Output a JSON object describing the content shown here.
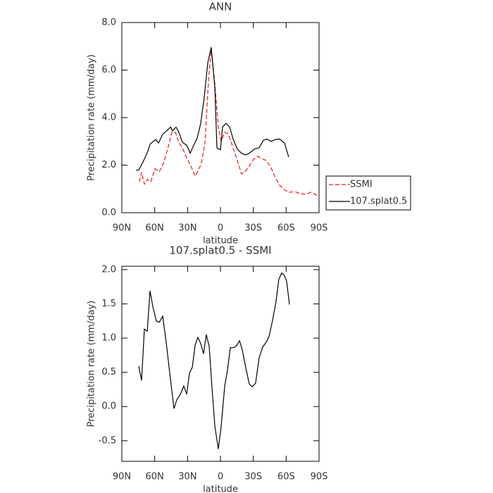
{
  "chart_data": [
    {
      "type": "line",
      "title": "ANN",
      "xlabel": "latitude",
      "ylabel": "Precipitation rate (mm/day)",
      "xlim": [
        90,
        -90
      ],
      "xticks": [
        {
          "value": 90,
          "label": "90N"
        },
        {
          "value": 60,
          "label": "60N"
        },
        {
          "value": 30,
          "label": "30N"
        },
        0,
        {
          "value": -30,
          "label": "30S"
        },
        {
          "value": -60,
          "label": "60S"
        },
        {
          "value": -90,
          "label": "90S"
        }
      ],
      "ylim": [
        0,
        8
      ],
      "yticks": [
        {
          "value": 0,
          "label": "0.0"
        },
        {
          "value": 2,
          "label": "2.0"
        },
        {
          "value": 4,
          "label": "4.0"
        },
        {
          "value": 6,
          "label": "6.0"
        },
        {
          "value": 8,
          "label": "8.0"
        }
      ],
      "legend": "right",
      "series": [
        {
          "name": "SSMI",
          "color": "#e41a1c",
          "dash": true,
          "x": [
            73.9,
            72,
            69.4,
            66.8,
            63.6,
            59.7,
            55.9,
            52.1,
            48.2,
            44.3,
            41.1,
            37.9,
            34.7,
            31.5,
            27,
            23.1,
            20.6,
            17.4,
            14.1,
            10.9,
            8.4,
            5.1,
            1.9,
            -0.6,
            -3.9,
            -7.1,
            -11.6,
            -15.4,
            -19.3,
            -22.5,
            -26.3,
            -30.2,
            -34.1,
            -37.9,
            -41.8,
            -45.6,
            -50.1,
            -54,
            -58.5,
            -63,
            -68.1,
            -72.6,
            -77.8,
            -82.3,
            -89.3
          ],
          "values": [
            1.3,
            1.7,
            1.2,
            1.4,
            1.3,
            1.85,
            1.72,
            2.07,
            2.67,
            3.4,
            3.38,
            2.96,
            2.73,
            2.37,
            1.96,
            1.54,
            1.75,
            2.07,
            2.96,
            5.54,
            6.87,
            5.4,
            3.6,
            3.02,
            3.38,
            3.32,
            2.73,
            2.19,
            1.63,
            1.72,
            1.96,
            2.25,
            2.37,
            2.28,
            2.19,
            1.96,
            1.48,
            1.16,
            0.95,
            0.86,
            0.89,
            0.8,
            0.77,
            0.86,
            0.71
          ]
        },
        {
          "name": "107.splat0.5",
          "color": "#000000",
          "dash": false,
          "x": [
            77,
            74.5,
            70,
            67,
            64,
            59,
            56.5,
            52.7,
            48.9,
            45.6,
            43.7,
            40.5,
            37.9,
            34.7,
            30.8,
            27.6,
            24.4,
            21.2,
            18,
            14.8,
            11.6,
            8.4,
            5.1,
            3.2,
            0,
            -1.9,
            -5.1,
            -8.4,
            -11.6,
            -15.4,
            -19.3,
            -23.1,
            -26.3,
            -30.8,
            -35.3,
            -39.2,
            -42.4,
            -46.3,
            -50.1,
            -54,
            -58.5,
            -62.3
          ],
          "values": [
            1.78,
            1.8,
            2.2,
            2.5,
            2.9,
            3.08,
            2.93,
            3.3,
            3.45,
            3.6,
            3.45,
            3.6,
            3.38,
            2.96,
            2.84,
            2.5,
            2.84,
            3.14,
            3.76,
            4.86,
            6.3,
            6.96,
            5.24,
            2.73,
            2.64,
            3.6,
            3.76,
            3.6,
            3.1,
            2.67,
            2.5,
            2.43,
            2.5,
            2.67,
            2.73,
            3.05,
            3.1,
            3.0,
            3.08,
            3.1,
            2.93,
            2.34
          ]
        }
      ]
    },
    {
      "type": "line",
      "title": "107.splat0.5 - SSMI",
      "xlabel": "latitude",
      "ylabel": "Precipitation rate (mm/day)",
      "xlim": [
        90,
        -90
      ],
      "xticks": [
        {
          "value": 90,
          "label": "90N"
        },
        {
          "value": 60,
          "label": "60N"
        },
        {
          "value": 30,
          "label": "30N"
        },
        0,
        {
          "value": -30,
          "label": "30S"
        },
        {
          "value": -60,
          "label": "60S"
        },
        {
          "value": -90,
          "label": "90S"
        }
      ],
      "ylim": [
        -0.8,
        2.05
      ],
      "yticks": [
        -0.5,
        {
          "value": 0,
          "label": "0.0"
        },
        0.5,
        {
          "value": 1,
          "label": "1.0"
        },
        1.5,
        {
          "value": 2,
          "label": "2.0"
        }
      ],
      "color": "#000000",
      "x": [
        74.6,
        72,
        69.4,
        66.8,
        64.3,
        61.7,
        58.5,
        55.9,
        52.7,
        49.5,
        46.3,
        42.4,
        39.8,
        36.6,
        33.4,
        30.8,
        28.3,
        25.7,
        23.1,
        20.6,
        18,
        15.4,
        12.9,
        10.3,
        7.7,
        5.1,
        1.9,
        -0.6,
        -3.9,
        -6.4,
        -9,
        -12.2,
        -14.8,
        -17.4,
        -19.9,
        -23.1,
        -26.3,
        -28.9,
        -32.1,
        -35.3,
        -38.6,
        -41.8,
        -44.3,
        -47.6,
        -50.8,
        -53.3,
        -55.9,
        -58.5,
        -60.4,
        -63
      ],
      "values": [
        0.59,
        0.38,
        1.13,
        1.1,
        1.69,
        1.46,
        1.25,
        1.23,
        1.32,
        0.94,
        0.49,
        -0.03,
        0.1,
        0.18,
        0.3,
        0.18,
        0.49,
        0.57,
        0.9,
        1.01,
        0.92,
        0.77,
        1.05,
        0.88,
        0.28,
        -0.29,
        -0.62,
        -0.3,
        0.3,
        0.53,
        0.86,
        0.86,
        0.89,
        0.96,
        0.83,
        0.57,
        0.33,
        0.29,
        0.34,
        0.71,
        0.87,
        0.94,
        1.02,
        1.26,
        1.54,
        1.86,
        1.95,
        1.91,
        1.83,
        1.49
      ]
    }
  ]
}
